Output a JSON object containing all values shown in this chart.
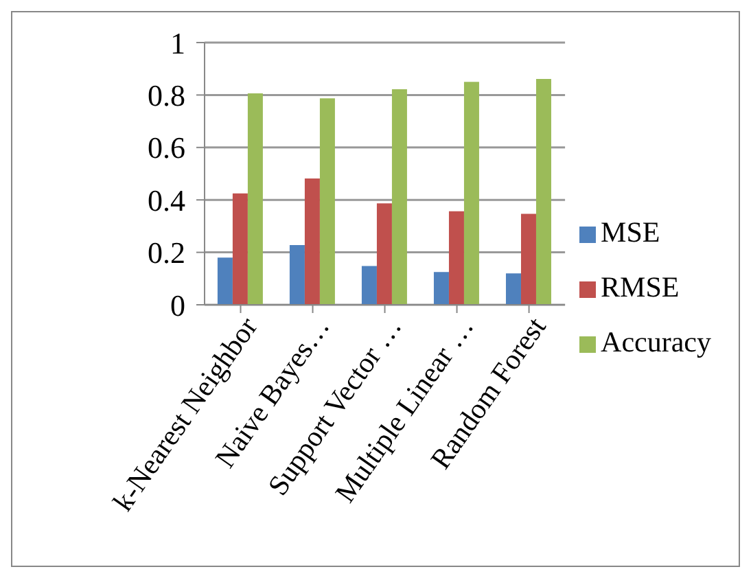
{
  "chart_data": {
    "type": "bar",
    "categories": [
      "k-Nearest Neighbor",
      "Naive Bayes…",
      "Support Vector …",
      "Multiple Linear …",
      "Random Forest"
    ],
    "series": [
      {
        "name": "MSE",
        "color": "#4f81bd",
        "values": [
          0.18,
          0.228,
          0.148,
          0.125,
          0.12
        ]
      },
      {
        "name": "RMSE",
        "color": "#c0504d",
        "values": [
          0.425,
          0.482,
          0.387,
          0.357,
          0.347
        ]
      },
      {
        "name": "Accuracy",
        "color": "#9bbb59",
        "values": [
          0.806,
          0.787,
          0.822,
          0.85,
          0.861
        ]
      }
    ],
    "ylim": [
      0,
      1
    ],
    "yticks": [
      0,
      0.2,
      0.4,
      0.6,
      0.8,
      1
    ],
    "grid": "y",
    "legend": "right"
  }
}
